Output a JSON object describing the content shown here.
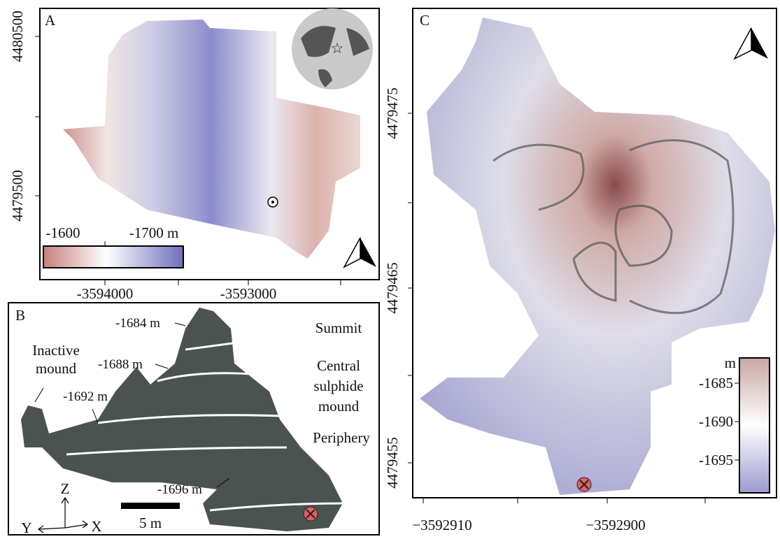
{
  "panels": [
    {
      "label": "A",
      "yticks": [
        "4480500",
        "4479500"
      ],
      "xticks": [
        "-3594000",
        "-3593000"
      ],
      "colorbar": [
        "-1600",
        "-1700 m"
      ]
    },
    {
      "label": "B",
      "contours": [
        "-1684 m",
        "-1688 m",
        "-1692 m",
        "-1696 m"
      ],
      "zones": [
        [
          "Inactive",
          "mound"
        ],
        [
          "Summit"
        ],
        [
          "Central",
          "sulphide",
          "mound"
        ],
        [
          "Periphery"
        ]
      ],
      "axes": [
        "Z",
        "Y",
        "X"
      ],
      "scale": "5 m"
    },
    {
      "label": "C",
      "yticks": [
        "4479475",
        "4479465",
        "4479455"
      ],
      "xticks": [
        "−3592910",
        "−3592900"
      ],
      "colorbar_unit": "m",
      "colorbar": [
        "-1685",
        "-1690",
        "-1695"
      ]
    }
  ]
}
